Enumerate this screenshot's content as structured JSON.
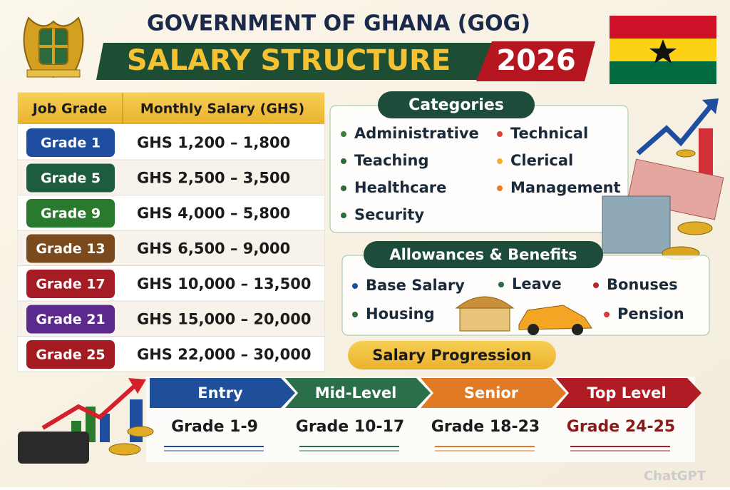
{
  "header": {
    "title": "GOVERNMENT OF GHANA (GOG)",
    "subtitle": "SALARY STRUCTURE",
    "year": "2026"
  },
  "table": {
    "columns": [
      "Job Grade",
      "Monthly Salary (GHS)"
    ],
    "rows": [
      {
        "grade": "Grade 1",
        "salary": "GHS 1,200 – 1,800",
        "color": "#1f4ea1"
      },
      {
        "grade": "Grade 5",
        "salary": "GHS 2,500 – 3,500",
        "color": "#1d5c3c"
      },
      {
        "grade": "Grade 9",
        "salary": "GHS 4,000 – 5,800",
        "color": "#2a7a2e"
      },
      {
        "grade": "Grade 13",
        "salary": "GHS 6,500 – 9,000",
        "color": "#7b4a1c"
      },
      {
        "grade": "Grade 17",
        "salary": "GHS 10,000 – 13,500",
        "color": "#a51c24"
      },
      {
        "grade": "Grade 21",
        "salary": "GHS 15,000 – 20,000",
        "color": "#5b2a8c"
      },
      {
        "grade": "Grade 25",
        "salary": "GHS 22,000 – 30,000",
        "color": "#a31b20"
      }
    ]
  },
  "categories": {
    "title": "Categories",
    "items": [
      {
        "label": "Administrative",
        "color": "#3f7d3a"
      },
      {
        "label": "Technical",
        "color": "#d9443a"
      },
      {
        "label": "Teaching",
        "color": "#2f6b3a"
      },
      {
        "label": "Clerical",
        "color": "#f0b323"
      },
      {
        "label": "Healthcare",
        "color": "#2f6b3a"
      },
      {
        "label": "Management",
        "color": "#e87a2a"
      },
      {
        "label": "Security",
        "color": "#2f6b3a"
      }
    ]
  },
  "allowances": {
    "title": "Allowances & Benefits",
    "items": [
      {
        "label": "Base Salary",
        "color": "#1f4ea1"
      },
      {
        "label": "Leave",
        "color": "#2f6b3a"
      },
      {
        "label": "Bonuses",
        "color": "#b3262a"
      },
      {
        "label": "Housing",
        "color": "#2f6b3a"
      },
      {
        "label": "Pension",
        "color": "#d63a33"
      }
    ]
  },
  "progression": {
    "title": "Salary Progression",
    "stages": [
      {
        "level": "Entry",
        "grades": "Grade 1-9",
        "color": "#1f4f9a",
        "text_color": "#1b1b1b"
      },
      {
        "level": "Mid-Level",
        "grades": "Grade 10-17",
        "color": "#2a6e4a",
        "text_color": "#1b1b1b"
      },
      {
        "level": "Senior",
        "grades": "Grade 18-23",
        "color": "#e07a24",
        "text_color": "#1b1b1b"
      },
      {
        "level": "Top Level",
        "grades": "Grade 24-25",
        "color": "#b01c24",
        "text_color": "#8a1a1a"
      }
    ]
  },
  "watermark": "ChatGPT"
}
